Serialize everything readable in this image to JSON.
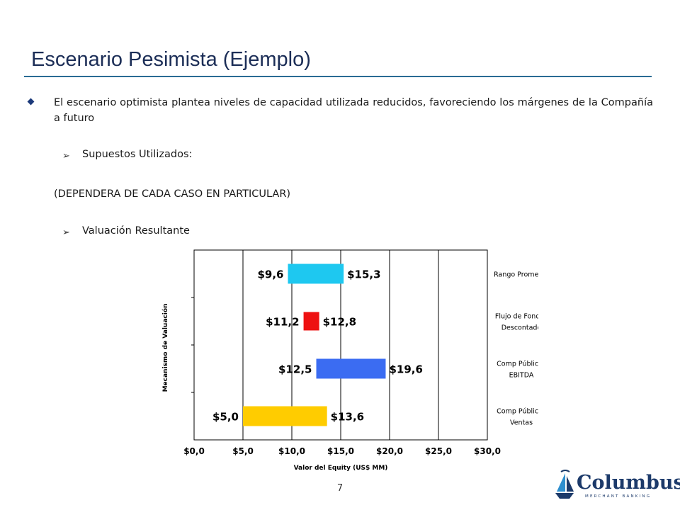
{
  "slide": {
    "title": "Escenario Pesimista (Ejemplo)",
    "bullet_text": "El escenario optimista plantea niveles de capacidad utilizada reducidos, favoreciendo los márgenes de la Compañía a futuro",
    "sub1": "Supuestos Utilizados:",
    "note": "(DEPENDERA DE CADA CASO EN PARTICULAR)",
    "sub2": "Valuación Resultante",
    "page_number": "7"
  },
  "logo": {
    "name": "Columbus",
    "tagline": "MERCHANT BANKING"
  },
  "chart_data": {
    "type": "bar",
    "orientation": "horizontal-floating",
    "xlabel": "Valor del Equity (US$ MM)",
    "ylabel": "Mecanismo de Valuación",
    "xlim": [
      0,
      30
    ],
    "xticks": [
      "$0,0",
      "$5,0",
      "$10,0",
      "$15,0",
      "$20,0",
      "$25,0",
      "$30,0"
    ],
    "grid": "vertical",
    "series": [
      {
        "category": [
          "Rango Promedio"
        ],
        "low": 9.6,
        "high": 15.3,
        "low_label": "$9,6",
        "high_label": "$15,3",
        "color": "#1ec8f0"
      },
      {
        "category": [
          "Flujo de Fondos",
          "Descontado"
        ],
        "low": 11.2,
        "high": 12.8,
        "low_label": "$11,2",
        "high_label": "$12,8",
        "color": "#ee1111"
      },
      {
        "category": [
          "Comp Públicos",
          "EBITDA"
        ],
        "low": 12.5,
        "high": 19.6,
        "low_label": "$12,5",
        "high_label": "$19,6",
        "color": "#3b6cf2"
      },
      {
        "category": [
          "Comp Públicos",
          "Ventas"
        ],
        "low": 5.0,
        "high": 13.6,
        "low_label": "$5,0",
        "high_label": "$13,6",
        "color": "#ffcc00"
      }
    ]
  }
}
